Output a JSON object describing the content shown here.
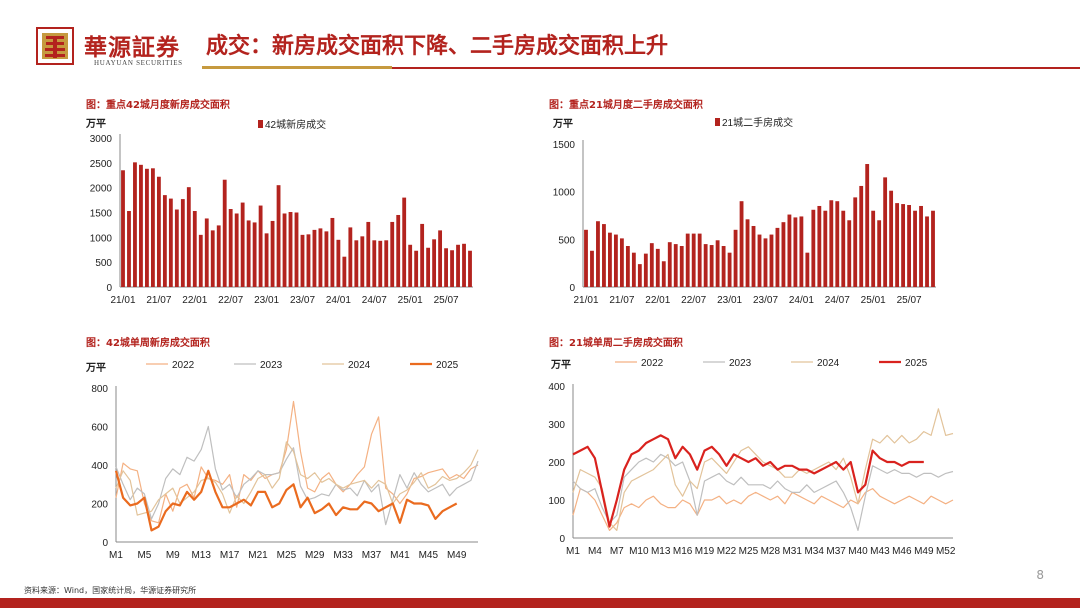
{
  "header": {
    "brand_cn": "華源証券",
    "brand_en": "HUAYUAN SECURITIES",
    "title": "成交：新房成交面积下降、二手房成交面积上升"
  },
  "footer": {
    "source": "资料来源：Wind，国家统计局，华源证券研究所",
    "page_number": "8"
  },
  "colors": {
    "brand_red": "#b3231e",
    "gold": "#c69a3f",
    "bar_red": "#b3231e"
  },
  "chart_data": [
    {
      "id": "c1",
      "caption": "图：重点42城月度新房成交面积",
      "type": "bar",
      "unit": "万平",
      "legend": "42城新房成交",
      "color": "#b3231e",
      "ylim": [
        0,
        3000
      ],
      "yticks": [
        0,
        500,
        1000,
        1500,
        2000,
        2500,
        3000
      ],
      "xtick_labels": [
        "21/01",
        "21/07",
        "22/01",
        "22/07",
        "23/01",
        "23/07",
        "24/01",
        "24/07",
        "25/01",
        "25/07"
      ],
      "xtick_every": 6,
      "values": [
        2350,
        1530,
        2510,
        2460,
        2380,
        2390,
        2220,
        1850,
        1780,
        1560,
        1770,
        2010,
        1530,
        1050,
        1380,
        1140,
        1240,
        2160,
        1570,
        1480,
        1700,
        1340,
        1300,
        1640,
        1080,
        1330,
        2050,
        1480,
        1510,
        1500,
        1050,
        1060,
        1150,
        1180,
        1120,
        1390,
        950,
        610,
        1200,
        940,
        1020,
        1310,
        940,
        930,
        940,
        1310,
        1450,
        1800,
        850,
        730,
        1270,
        790,
        960,
        1140,
        780,
        740,
        850,
        870,
        730
      ]
    },
    {
      "id": "c2",
      "caption": "图：重点21城月度二手房成交面积",
      "type": "bar",
      "unit": "万平",
      "legend": "21城二手房成交",
      "color": "#b3231e",
      "ylim": [
        0,
        1500
      ],
      "yticks": [
        0,
        500,
        1000,
        1500
      ],
      "xtick_labels": [
        "21/01",
        "21/07",
        "22/01",
        "22/07",
        "23/01",
        "23/07",
        "24/01",
        "24/07",
        "25/01",
        "25/07"
      ],
      "xtick_every": 6,
      "values": [
        600,
        380,
        690,
        660,
        570,
        550,
        510,
        430,
        360,
        240,
        350,
        460,
        400,
        270,
        470,
        450,
        430,
        560,
        560,
        560,
        450,
        440,
        490,
        430,
        360,
        600,
        900,
        710,
        640,
        550,
        510,
        550,
        620,
        680,
        760,
        730,
        740,
        360,
        810,
        850,
        800,
        910,
        900,
        800,
        700,
        940,
        1060,
        1290,
        800,
        700,
        1150,
        1010,
        880,
        870,
        860,
        800,
        850,
        740,
        800
      ]
    },
    {
      "id": "c3",
      "caption": "图：42城单周新房成交面积",
      "type": "line",
      "unit": "万平",
      "ylim": [
        0,
        800
      ],
      "yticks": [
        0,
        200,
        400,
        600,
        800
      ],
      "n_weeks": 52,
      "xtick_labels": [
        "M1",
        "M5",
        "M9",
        "M13",
        "M17",
        "M21",
        "M25",
        "M29",
        "M33",
        "M37",
        "M41",
        "M45",
        "M49"
      ],
      "xtick_positions": [
        1,
        5,
        9,
        13,
        17,
        21,
        25,
        29,
        33,
        37,
        41,
        45,
        49
      ],
      "series": [
        {
          "name": "2022",
          "color": "#f4b183",
          "width": 1.2,
          "values": [
            230,
            410,
            380,
            370,
            200,
            110,
            100,
            250,
            160,
            280,
            300,
            230,
            390,
            330,
            320,
            300,
            350,
            180,
            350,
            320,
            370,
            330,
            350,
            360,
            480,
            730,
            470,
            280,
            260,
            330,
            360,
            300,
            260,
            300,
            350,
            390,
            560,
            650,
            280,
            250,
            200,
            250,
            330,
            340,
            360,
            370,
            380,
            330,
            350,
            330,
            380,
            400
          ]
        },
        {
          "name": "2023",
          "color": "#bfbfbf",
          "width": 1.2,
          "values": [
            390,
            300,
            220,
            280,
            250,
            120,
            200,
            330,
            380,
            350,
            440,
            420,
            480,
            600,
            380,
            270,
            300,
            230,
            300,
            330,
            370,
            350,
            350,
            360,
            430,
            490,
            290,
            220,
            230,
            250,
            240,
            300,
            270,
            280,
            240,
            320,
            260,
            300,
            90,
            220,
            350,
            280,
            360,
            300,
            260,
            280,
            300,
            240,
            280,
            300,
            320,
            420
          ]
        },
        {
          "name": "2024",
          "color": "#e2c39a",
          "width": 1.2,
          "values": [
            280,
            370,
            320,
            140,
            150,
            160,
            220,
            250,
            280,
            200,
            230,
            260,
            320,
            330,
            310,
            250,
            150,
            240,
            200,
            260,
            330,
            350,
            280,
            330,
            520,
            470,
            350,
            330,
            360,
            310,
            330,
            300,
            280,
            300,
            310,
            320,
            280,
            320,
            300,
            200,
            250,
            270,
            310,
            360,
            280,
            300,
            340,
            320,
            330,
            360,
            400,
            480
          ]
        },
        {
          "name": "2025",
          "color": "#ea6b1f",
          "width": 2.2,
          "values": [
            370,
            230,
            190,
            200,
            230,
            60,
            80,
            160,
            200,
            190,
            260,
            220,
            260,
            370,
            260,
            180,
            180,
            200,
            220,
            190,
            260,
            260,
            180,
            200,
            270,
            300,
            180,
            230,
            150,
            170,
            200,
            140,
            180,
            170,
            170,
            210,
            200,
            160,
            180,
            200,
            100,
            220,
            200,
            200,
            190,
            120,
            160,
            180,
            200
          ]
        }
      ],
      "legend_entries": [
        "2022",
        "2023",
        "2024",
        "2025"
      ]
    },
    {
      "id": "c4",
      "caption": "图：21城单周二手房成交面积",
      "type": "line",
      "unit": "万平",
      "ylim": [
        0,
        400
      ],
      "yticks": [
        0,
        100,
        200,
        300,
        400
      ],
      "n_weeks": 53,
      "xtick_labels": [
        "M1",
        "M4",
        "M7",
        "M10",
        "M13",
        "M16",
        "M19",
        "M22",
        "M25",
        "M28",
        "M31",
        "M34",
        "M37",
        "M40",
        "M43",
        "M46",
        "M49",
        "M52"
      ],
      "xtick_positions": [
        1,
        4,
        7,
        10,
        13,
        16,
        19,
        22,
        25,
        28,
        31,
        34,
        37,
        40,
        43,
        46,
        49,
        52
      ],
      "series": [
        {
          "name": "2022",
          "color": "#f4b183",
          "width": 1.2,
          "values": [
            60,
            130,
            120,
            100,
            60,
            20,
            40,
            80,
            90,
            80,
            100,
            110,
            90,
            80,
            80,
            100,
            90,
            60,
            100,
            100,
            110,
            90,
            100,
            90,
            110,
            120,
            110,
            100,
            110,
            90,
            120,
            110,
            100,
            90,
            110,
            100,
            90,
            80,
            100,
            90,
            120,
            130,
            110,
            100,
            90,
            100,
            110,
            100,
            90,
            110,
            100,
            90,
            100
          ]
        },
        {
          "name": "2023",
          "color": "#bfbfbf",
          "width": 1.2,
          "values": [
            150,
            130,
            120,
            130,
            80,
            40,
            60,
            160,
            180,
            200,
            210,
            200,
            220,
            210,
            190,
            200,
            150,
            60,
            150,
            160,
            170,
            150,
            140,
            160,
            140,
            140,
            140,
            130,
            150,
            130,
            120,
            120,
            140,
            120,
            130,
            140,
            150,
            120,
            80,
            20,
            110,
            190,
            180,
            170,
            180,
            170,
            170,
            160,
            170,
            170,
            160,
            170,
            175
          ]
        },
        {
          "name": "2024",
          "color": "#e2c39a",
          "width": 1.2,
          "values": [
            120,
            180,
            170,
            160,
            130,
            40,
            20,
            120,
            150,
            160,
            170,
            180,
            200,
            220,
            140,
            110,
            150,
            130,
            200,
            210,
            190,
            170,
            200,
            230,
            240,
            220,
            200,
            190,
            180,
            160,
            160,
            180,
            170,
            180,
            190,
            200,
            180,
            210,
            160,
            90,
            180,
            260,
            250,
            270,
            250,
            270,
            250,
            260,
            280,
            270,
            340,
            270,
            275
          ]
        },
        {
          "name": "2025",
          "color": "#d9221e",
          "width": 2.2,
          "values": [
            220,
            230,
            240,
            210,
            120,
            30,
            100,
            180,
            220,
            230,
            250,
            260,
            270,
            260,
            210,
            240,
            220,
            180,
            230,
            240,
            220,
            190,
            220,
            210,
            200,
            210,
            190,
            200,
            180,
            190,
            190,
            180,
            180,
            170,
            180,
            190,
            200,
            180,
            200,
            120,
            140,
            230,
            210,
            200,
            200,
            190,
            200,
            200,
            200
          ]
        }
      ],
      "legend_entries": [
        "2022",
        "2023",
        "2024",
        "2025"
      ]
    }
  ]
}
